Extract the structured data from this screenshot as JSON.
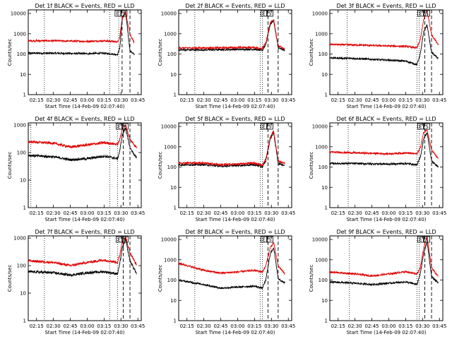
{
  "chart_data": [
    {
      "type": "line",
      "title": "Det 1f BLACK = Events, RED = LLD",
      "xlabel": "Start Time (14-Feb-09 02:07:40)",
      "ylabel": "Counts/sec",
      "x_ticks": [
        "02:15",
        "02:30",
        "02:45",
        "03:00",
        "03:15",
        "03:30",
        "03:45"
      ],
      "y_ticks": [
        "1",
        "10",
        "100",
        "1000",
        "10000"
      ],
      "ylim": [
        1,
        15000
      ],
      "log_y": true,
      "time_range": [
        "02:07:40",
        "03:48"
      ],
      "interval_labels": [
        "E",
        "S"
      ],
      "dotted_times": [
        "02:22",
        "03:20",
        "03:28"
      ],
      "dashed_times": [
        "03:31",
        "03:38"
      ],
      "series": [
        {
          "name": "Events",
          "color": "#000000",
          "x": [
            "02:07",
            "02:30",
            "03:00",
            "03:15",
            "03:27",
            "03:29",
            "03:31",
            "03:34",
            "03:38",
            "03:42"
          ],
          "values": [
            110,
            110,
            105,
            110,
            95,
            200,
            5000,
            12000,
            150,
            90
          ]
        },
        {
          "name": "LLD",
          "color": "#e00000",
          "x": [
            "02:07",
            "02:30",
            "03:00",
            "03:15",
            "03:27",
            "03:29",
            "03:31",
            "03:34",
            "03:38",
            "03:42"
          ],
          "values": [
            450,
            450,
            420,
            450,
            400,
            700,
            6000,
            12000,
            900,
            350
          ]
        }
      ]
    },
    {
      "type": "line",
      "title": "Det 2f BLACK = Events, RED = LLD",
      "xlabel": "Start Time (14-Feb-09 02:07:40)",
      "ylabel": "Counts/sec",
      "x_ticks": [
        "02:15",
        "02:30",
        "02:45",
        "03:00",
        "03:15",
        "03:30",
        "03:45"
      ],
      "y_ticks": [
        "1",
        "10",
        "100",
        "1000",
        "10000"
      ],
      "ylim": [
        1,
        15000
      ],
      "log_y": true,
      "time_range": [
        "02:07:40",
        "03:48"
      ],
      "interval_labels": [
        "E",
        "S"
      ],
      "dotted_times": [
        "02:22",
        "03:20",
        "03:22"
      ],
      "dashed_times": [
        "03:27",
        "03:36"
      ],
      "series": [
        {
          "name": "Events",
          "color": "#000000",
          "x": [
            "02:07",
            "02:30",
            "03:00",
            "03:15",
            "03:22",
            "03:25",
            "03:29",
            "03:32",
            "03:36",
            "03:42"
          ],
          "values": [
            160,
            160,
            170,
            170,
            150,
            300,
            3000,
            4500,
            200,
            150
          ]
        },
        {
          "name": "LLD",
          "color": "#e00000",
          "x": [
            "02:07",
            "02:30",
            "03:00",
            "03:15",
            "03:22",
            "03:25",
            "03:29",
            "03:32",
            "03:36",
            "03:42"
          ],
          "values": [
            200,
            200,
            210,
            210,
            190,
            350,
            3500,
            5000,
            250,
            180
          ]
        }
      ]
    },
    {
      "type": "line",
      "title": "Det 3f BLACK = Events, RED = LLD",
      "xlabel": "Start Time (14-Feb-09 02:07:40)",
      "ylabel": "Counts/sec",
      "x_ticks": [
        "02:15",
        "02:30",
        "02:45",
        "03:00",
        "03:15",
        "03:30",
        "03:45"
      ],
      "y_ticks": [
        "1",
        "10",
        "100",
        "1000",
        "10000"
      ],
      "ylim": [
        1,
        15000
      ],
      "log_y": true,
      "time_range": [
        "02:07:40",
        "03:48"
      ],
      "interval_labels": [
        "E",
        "S"
      ],
      "dotted_times": [
        "02:23",
        "03:25",
        "03:27"
      ],
      "dashed_times": [
        "03:32",
        "03:38"
      ],
      "series": [
        {
          "name": "Events",
          "color": "#000000",
          "x": [
            "02:07",
            "02:30",
            "03:00",
            "03:15",
            "03:25",
            "03:28",
            "03:31",
            "03:34",
            "03:38",
            "03:44"
          ],
          "values": [
            65,
            60,
            50,
            45,
            30,
            100,
            1200,
            2800,
            120,
            60
          ]
        },
        {
          "name": "LLD",
          "color": "#e00000",
          "x": [
            "02:07",
            "02:30",
            "03:00",
            "03:15",
            "03:25",
            "03:28",
            "03:31",
            "03:34",
            "03:38",
            "03:44"
          ],
          "values": [
            300,
            280,
            250,
            240,
            200,
            500,
            5000,
            14000,
            900,
            300
          ]
        }
      ]
    },
    {
      "type": "line",
      "title": "Det 4f BLACK = Events, RED = LLD",
      "xlabel": "Start Time (14-Feb-09 02:07:40)",
      "ylabel": "Counts/sec",
      "x_ticks": [
        "02:15",
        "02:30",
        "02:45",
        "03:00",
        "03:15",
        "03:30",
        "03:45"
      ],
      "y_ticks": [
        "1",
        "10",
        "100",
        "1000"
      ],
      "ylim": [
        1,
        1200
      ],
      "log_y": true,
      "time_range": [
        "02:07:40",
        "03:48"
      ],
      "interval_labels": [
        "E",
        "S"
      ],
      "dotted_times": [
        "02:10",
        "03:20",
        "03:27"
      ],
      "dashed_times": [
        "03:32",
        "03:38"
      ],
      "series": [
        {
          "name": "Events",
          "color": "#000000",
          "x": [
            "02:07",
            "02:30",
            "02:45",
            "03:00",
            "03:15",
            "03:27",
            "03:29",
            "03:31",
            "03:34",
            "03:38",
            "03:44"
          ],
          "values": [
            80,
            70,
            55,
            60,
            75,
            60,
            120,
            400,
            800,
            150,
            60
          ]
        },
        {
          "name": "LLD",
          "color": "#e00000",
          "x": [
            "02:07",
            "02:30",
            "02:45",
            "03:00",
            "03:15",
            "03:27",
            "03:29",
            "03:31",
            "03:34",
            "03:38",
            "03:44"
          ],
          "values": [
            250,
            220,
            160,
            190,
            230,
            200,
            300,
            700,
            1000,
            300,
            150
          ]
        }
      ]
    },
    {
      "type": "line",
      "title": "Det 5f BLACK = Events, RED = LLD",
      "xlabel": "Start Time (14-Feb-09 02:07:40)",
      "ylabel": "Counts/sec",
      "x_ticks": [
        "02:15",
        "02:30",
        "02:45",
        "03:00",
        "03:15",
        "03:30",
        "03:45"
      ],
      "y_ticks": [
        "1",
        "10",
        "100",
        "1000",
        "10000"
      ],
      "ylim": [
        1,
        15000
      ],
      "log_y": true,
      "time_range": [
        "02:07:40",
        "03:48"
      ],
      "interval_labels": [
        "E",
        "S"
      ],
      "dotted_times": [
        "02:22",
        "03:20",
        "03:22"
      ],
      "dashed_times": [
        "03:27",
        "03:36"
      ],
      "series": [
        {
          "name": "Events",
          "color": "#000000",
          "x": [
            "02:07",
            "02:30",
            "02:45",
            "03:00",
            "03:15",
            "03:22",
            "03:25",
            "03:29",
            "03:32",
            "03:36",
            "03:42"
          ],
          "values": [
            130,
            130,
            110,
            120,
            130,
            100,
            200,
            2500,
            5000,
            150,
            120
          ]
        },
        {
          "name": "LLD",
          "color": "#e00000",
          "x": [
            "02:07",
            "02:30",
            "02:45",
            "03:00",
            "03:15",
            "03:22",
            "03:25",
            "03:29",
            "03:32",
            "03:36",
            "03:42"
          ],
          "values": [
            160,
            160,
            130,
            140,
            160,
            120,
            250,
            3000,
            6000,
            200,
            150
          ]
        }
      ]
    },
    {
      "type": "line",
      "title": "Det 6f BLACK = Events, RED = LLD",
      "xlabel": "Start Time (14-Feb-09 02:07:40)",
      "ylabel": "Counts/sec",
      "x_ticks": [
        "02:15",
        "02:30",
        "02:45",
        "03:00",
        "03:15",
        "03:30",
        "03:45"
      ],
      "y_ticks": [
        "1",
        "10",
        "100",
        "1000",
        "10000"
      ],
      "ylim": [
        1,
        15000
      ],
      "log_y": true,
      "time_range": [
        "02:07:40",
        "03:48"
      ],
      "interval_labels": [
        "E",
        "S"
      ],
      "dotted_times": [
        "02:24",
        "03:25",
        "03:27"
      ],
      "dashed_times": [
        "03:32",
        "03:38"
      ],
      "series": [
        {
          "name": "Events",
          "color": "#000000",
          "x": [
            "02:07",
            "02:30",
            "03:00",
            "03:15",
            "03:25",
            "03:28",
            "03:31",
            "03:34",
            "03:38",
            "03:44"
          ],
          "values": [
            150,
            150,
            140,
            150,
            130,
            300,
            2500,
            5000,
            200,
            100
          ]
        },
        {
          "name": "LLD",
          "color": "#e00000",
          "x": [
            "02:07",
            "02:30",
            "03:00",
            "03:15",
            "03:25",
            "03:28",
            "03:31",
            "03:34",
            "03:38",
            "03:44"
          ],
          "values": [
            550,
            500,
            450,
            500,
            450,
            900,
            5000,
            7000,
            700,
            250
          ]
        }
      ]
    },
    {
      "type": "line",
      "title": "Det 7f BLACK = Events, RED = LLD",
      "xlabel": "Start Time (14-Feb-09 02:07:40)",
      "ylabel": "Counts/sec",
      "x_ticks": [
        "02:15",
        "02:30",
        "02:45",
        "03:00",
        "03:15",
        "03:30",
        "03:45"
      ],
      "y_ticks": [
        "1",
        "10",
        "100",
        "1000"
      ],
      "ylim": [
        1,
        1200
      ],
      "log_y": true,
      "time_range": [
        "02:07:40",
        "03:48"
      ],
      "interval_labels": [
        "E",
        "S"
      ],
      "dotted_times": [
        "02:22",
        "03:20",
        "03:27"
      ],
      "dashed_times": [
        "03:32",
        "03:38"
      ],
      "series": [
        {
          "name": "Events",
          "color": "#000000",
          "x": [
            "02:07",
            "02:30",
            "02:45",
            "03:00",
            "03:15",
            "03:27",
            "03:29",
            "03:31",
            "03:34",
            "03:38",
            "03:44"
          ],
          "values": [
            60,
            55,
            45,
            55,
            60,
            50,
            120,
            400,
            900,
            150,
            50
          ]
        },
        {
          "name": "LLD",
          "color": "#e00000",
          "x": [
            "02:07",
            "02:30",
            "02:45",
            "03:00",
            "03:15",
            "03:27",
            "03:29",
            "03:31",
            "03:34",
            "03:38",
            "03:44"
          ],
          "values": [
            150,
            130,
            100,
            130,
            160,
            130,
            250,
            700,
            1100,
            300,
            100
          ]
        }
      ]
    },
    {
      "type": "line",
      "title": "Det 8f BLACK = Events, RED = LLD",
      "xlabel": "Start Time (14-Feb-09 02:07:40)",
      "ylabel": "Counts/sec",
      "x_ticks": [
        "02:15",
        "02:30",
        "02:45",
        "03:00",
        "03:15",
        "03:30",
        "03:45"
      ],
      "y_ticks": [
        "1",
        "10",
        "100",
        "1000",
        "10000"
      ],
      "ylim": [
        1,
        15000
      ],
      "log_y": true,
      "time_range": [
        "02:07:40",
        "03:48"
      ],
      "interval_labels": [
        "E",
        "S"
      ],
      "dotted_times": [
        "02:22",
        "03:20",
        "03:22"
      ],
      "dashed_times": [
        "03:27",
        "03:36"
      ],
      "series": [
        {
          "name": "Events",
          "color": "#000000",
          "x": [
            "02:07",
            "02:30",
            "02:45",
            "03:00",
            "03:15",
            "03:22",
            "03:25",
            "03:29",
            "03:32",
            "03:36",
            "03:42"
          ],
          "values": [
            100,
            60,
            40,
            45,
            50,
            40,
            100,
            2000,
            4000,
            120,
            70
          ]
        },
        {
          "name": "LLD",
          "color": "#e00000",
          "x": [
            "02:07",
            "02:30",
            "02:45",
            "03:00",
            "03:15",
            "03:22",
            "03:25",
            "03:29",
            "03:32",
            "03:36",
            "03:42"
          ],
          "values": [
            700,
            300,
            220,
            250,
            300,
            250,
            500,
            4000,
            7000,
            500,
            200
          ]
        }
      ]
    },
    {
      "type": "line",
      "title": "Det 9f BLACK = Events, RED = LLD",
      "xlabel": "Start Time (14-Feb-09 02:07:40)",
      "ylabel": "Counts/sec",
      "x_ticks": [
        "02:15",
        "02:30",
        "02:45",
        "03:00",
        "03:15",
        "03:30",
        "03:45"
      ],
      "y_ticks": [
        "1",
        "10",
        "100",
        "1000",
        "10000"
      ],
      "ylim": [
        1,
        15000
      ],
      "log_y": true,
      "time_range": [
        "02:07:40",
        "03:48"
      ],
      "interval_labels": [
        "E",
        "S"
      ],
      "dotted_times": [
        "02:25",
        "03:25",
        "03:27"
      ],
      "dashed_times": [
        "03:32",
        "03:38"
      ],
      "series": [
        {
          "name": "Events",
          "color": "#000000",
          "x": [
            "02:07",
            "02:30",
            "02:45",
            "03:00",
            "03:15",
            "03:25",
            "03:28",
            "03:31",
            "03:34",
            "03:38",
            "03:44"
          ],
          "values": [
            80,
            70,
            60,
            70,
            80,
            60,
            200,
            2000,
            8000,
            150,
            70
          ]
        },
        {
          "name": "LLD",
          "color": "#e00000",
          "x": [
            "02:07",
            "02:30",
            "02:45",
            "03:00",
            "03:15",
            "03:25",
            "03:28",
            "03:31",
            "03:34",
            "03:38",
            "03:44"
          ],
          "values": [
            250,
            200,
            160,
            200,
            260,
            200,
            400,
            4000,
            14000,
            400,
            150
          ]
        }
      ]
    }
  ]
}
